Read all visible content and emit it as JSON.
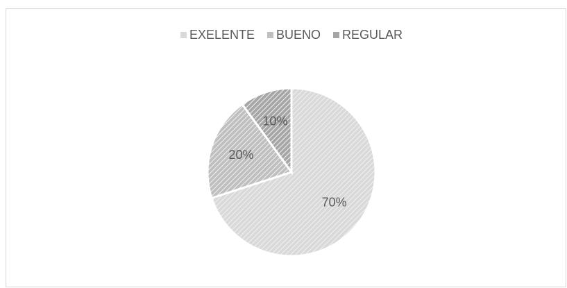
{
  "chart_data": {
    "type": "pie",
    "categories": [
      "EXELENTE",
      "BUENO",
      "REGULAR"
    ],
    "values": [
      70,
      20,
      10
    ],
    "value_labels": [
      "70%",
      "20%",
      "10%"
    ],
    "colors": [
      "#d9d9d9",
      "#bfbfbf",
      "#a6a6a6"
    ],
    "legend": "top"
  }
}
